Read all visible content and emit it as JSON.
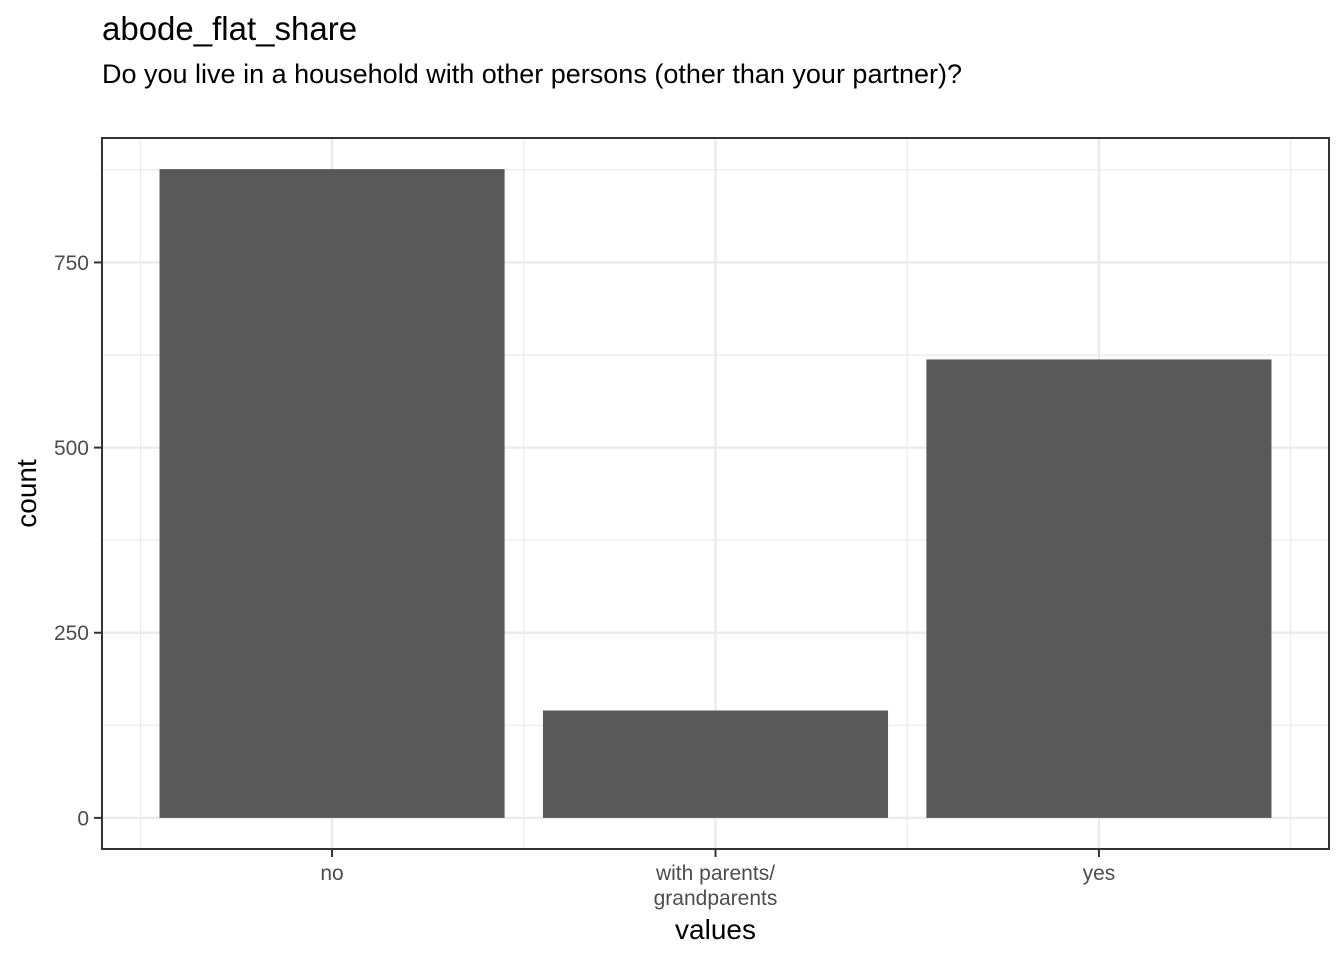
{
  "chart_data": {
    "type": "bar",
    "title": "abode_flat_share",
    "subtitle": "Do you live in a household with other persons (other than your partner)?",
    "xlabel": "values",
    "ylabel": "count",
    "categories": [
      [
        "no"
      ],
      [
        "with parents/",
        "grandparents"
      ],
      [
        "yes"
      ]
    ],
    "values": [
      876,
      145,
      619
    ],
    "ylim": [
      -42,
      918
    ],
    "yticks": [
      0,
      250,
      500,
      750
    ],
    "grid": true,
    "bar_color": "#595959",
    "grid_color": "#ebebeb",
    "panel_border_color": "#333333"
  }
}
